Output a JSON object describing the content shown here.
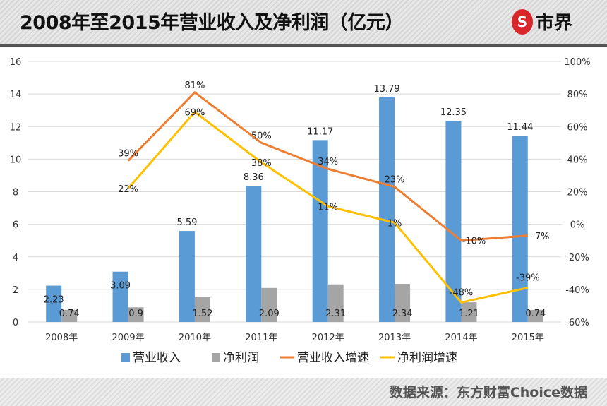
{
  "header": {
    "title": "2008年至2015年营业收入及净利润（亿元）",
    "logo_text": "市界"
  },
  "footer": {
    "source": "数据来源：东方财富Choice数据"
  },
  "colors": {
    "revenue": "#5b9bd5",
    "profit": "#a5a5a5",
    "revenue_growth": "#ed7d31",
    "profit_growth": "#ffc000"
  },
  "chart_data": {
    "type": "bar",
    "categories": [
      "2008年",
      "2009年",
      "2010年",
      "2011年",
      "2012年",
      "2013年",
      "2014年",
      "2015年"
    ],
    "series": [
      {
        "name": "营业收入",
        "type": "bar",
        "axis": "left",
        "values": [
          2.23,
          3.09,
          5.59,
          8.36,
          11.17,
          13.79,
          12.35,
          11.44
        ]
      },
      {
        "name": "净利润",
        "type": "bar",
        "axis": "left",
        "values": [
          0.74,
          0.9,
          1.52,
          2.09,
          2.31,
          2.34,
          1.21,
          0.74
        ]
      },
      {
        "name": "营业收入增速",
        "type": "line",
        "axis": "right",
        "values": [
          null,
          39,
          81,
          50,
          34,
          23,
          -10,
          -7
        ]
      },
      {
        "name": "净利润增速",
        "type": "line",
        "axis": "right",
        "values": [
          null,
          22,
          69,
          38,
          11,
          1,
          -48,
          -39
        ]
      }
    ],
    "left_axis": {
      "ylim": [
        0,
        16
      ],
      "ticks": [
        0,
        2,
        4,
        6,
        8,
        10,
        12,
        14,
        16
      ]
    },
    "right_axis": {
      "ylim": [
        -60,
        100
      ],
      "ticks": [
        "-60%",
        "-40%",
        "-20%",
        "0%",
        "20%",
        "40%",
        "60%",
        "80%",
        "100%"
      ]
    },
    "grid": true,
    "legend": "bottom"
  }
}
